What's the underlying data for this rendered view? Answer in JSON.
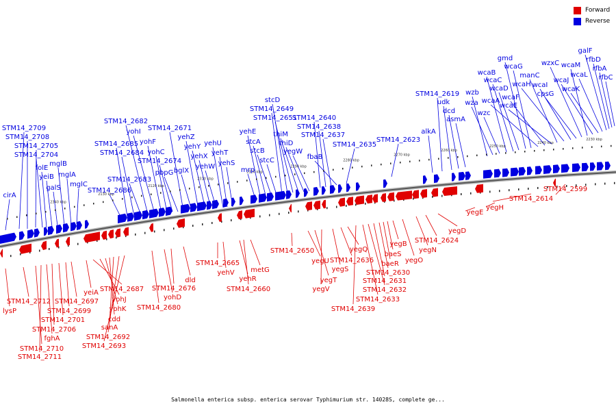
{
  "caption": "Salmonella enterica subsp. enterica serovar Typhimurium str. 14028S, complete ge...",
  "legend": [
    {
      "label": "Forward",
      "color": "#e00000"
    },
    {
      "label": "Reverse",
      "color": "#0000e0"
    }
  ],
  "axis_ticks": [
    "2130 kbp",
    "2120 kbp",
    "2310 kbp",
    "2300 kbp",
    "2290 kbp",
    "2280 kbp",
    "2270 kbp",
    "2260 kbp",
    "2250 kbp",
    "2240 kbp",
    "2230 kbp",
    "2340 kbp",
    "2330 kbp"
  ],
  "genes": {
    "reverse": [
      "cirA",
      "STM14_2709",
      "STM14_2708",
      "STM14_2705",
      "STM14_2704",
      "folE",
      "yeiB",
      "galS",
      "mglB",
      "mglA",
      "mglC",
      "STM14_2686",
      "STM14_2685",
      "STM14_2684",
      "STM14_2683",
      "STM14_2682",
      "yohI",
      "yohF",
      "yohC",
      "STM14_2674",
      "pbpG",
      "STM14_2671",
      "bglX",
      "yehZ",
      "yehY",
      "yehX",
      "yehW",
      "yehU",
      "yehT",
      "yehS",
      "mrp",
      "yehE",
      "stcA",
      "stcB",
      "stcC",
      "STM14_2649",
      "stcD",
      "STM14_2651",
      "thiM",
      "thiD",
      "yegW",
      "STM14_2640",
      "STM14_2638",
      "STM14_2637",
      "fbaB",
      "STM14_2635",
      "STM14_2623",
      "alkA",
      "STM14_2619",
      "udk",
      "dcd",
      "asmA",
      "wzb",
      "wza",
      "wzc",
      "wcaB",
      "wcaC",
      "wcaD",
      "gmd",
      "wcaG",
      "wcaA",
      "wcaF",
      "wcaE",
      "manC",
      "wcaH",
      "wcaI",
      "cpsG",
      "wzxC",
      "wcaM",
      "wcaJ",
      "wcaK",
      "wcaL",
      "galF",
      "rfbD",
      "rfbA",
      "rfbC",
      "rfbB",
      "rfbI"
    ],
    "forward": [
      "lysP",
      "STM14_2712",
      "STM14_2710",
      "STM14_2711",
      "fghA",
      "STM14_2706",
      "STM14_2701",
      "STM14_2699",
      "STM14_2697",
      "yeiA",
      "STM14_2687",
      "yohJ",
      "yohK",
      "cdd",
      "sanA",
      "STM14_2692",
      "STM14_2693",
      "STM14_2680",
      "yohD",
      "STM14_2676",
      "dld",
      "STM14_2665",
      "yehV",
      "metG",
      "yehR",
      "STM14_2660",
      "STM14_2650",
      "yegU",
      "yegT",
      "yegV",
      "yegS",
      "STM14_2636",
      "yegQ",
      "STM14_2639",
      "STM14_2633",
      "STM14_2632",
      "STM14_2631",
      "STM14_2630",
      "baeR",
      "baeS",
      "yegB",
      "yegO",
      "yegN",
      "STM14_2624",
      "yegD",
      "yegE",
      "yegH",
      "STM14_2614",
      "STM14_2599"
    ]
  }
}
